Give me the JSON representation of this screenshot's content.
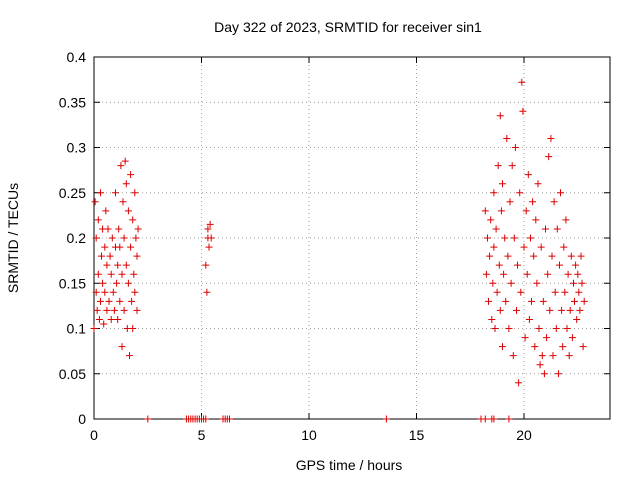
{
  "chart_data": {
    "type": "scatter",
    "title": "Day 322 of 2023, SRMTID for receiver sin1",
    "xlabel": "GPS time / hours",
    "ylabel": "SRMTID / TECUs",
    "xlim": [
      0,
      24
    ],
    "ylim": [
      0,
      0.4
    ],
    "grid": true,
    "marker": "+",
    "color": "#dd0000",
    "xticks": [
      0,
      5,
      10,
      15,
      20
    ],
    "xtick_labels": [
      "0",
      "5",
      "10",
      "15",
      "20"
    ],
    "yticks": [
      0,
      0.05,
      0.1,
      0.15,
      0.2,
      0.25,
      0.3,
      0.35,
      0.4
    ],
    "ytick_labels": [
      "0",
      "0.05",
      "0.1",
      "0.15",
      "0.2",
      "0.25",
      "0.3",
      "0.35",
      "0.4"
    ],
    "series": [
      {
        "points": [
          [
            0.0,
            0.1
          ],
          [
            0.05,
            0.24
          ],
          [
            0.1,
            0.14
          ],
          [
            0.1,
            0.2
          ],
          [
            0.15,
            0.12
          ],
          [
            0.2,
            0.22
          ],
          [
            0.2,
            0.16
          ],
          [
            0.25,
            0.11
          ],
          [
            0.3,
            0.25
          ],
          [
            0.3,
            0.13
          ],
          [
            0.35,
            0.18
          ],
          [
            0.4,
            0.21
          ],
          [
            0.4,
            0.15
          ],
          [
            0.45,
            0.105
          ],
          [
            0.5,
            0.19
          ],
          [
            0.5,
            0.14
          ],
          [
            0.55,
            0.23
          ],
          [
            0.6,
            0.12
          ],
          [
            0.6,
            0.17
          ],
          [
            0.65,
            0.21
          ],
          [
            0.7,
            0.13
          ],
          [
            0.75,
            0.18
          ],
          [
            0.8,
            0.11
          ],
          [
            0.8,
            0.16
          ],
          [
            0.85,
            0.2
          ],
          [
            0.9,
            0.14
          ],
          [
            0.95,
            0.12
          ],
          [
            1.0,
            0.19
          ],
          [
            1.0,
            0.25
          ],
          [
            1.05,
            0.15
          ],
          [
            1.1,
            0.11
          ],
          [
            1.1,
            0.17
          ],
          [
            1.15,
            0.21
          ],
          [
            1.2,
            0.13
          ],
          [
            1.2,
            0.19
          ],
          [
            1.25,
            0.28
          ],
          [
            1.3,
            0.08
          ],
          [
            1.3,
            0.16
          ],
          [
            1.35,
            0.24
          ],
          [
            1.4,
            0.12
          ],
          [
            1.4,
            0.2
          ],
          [
            1.45,
            0.285
          ],
          [
            1.5,
            0.17
          ],
          [
            1.5,
            0.26
          ],
          [
            1.55,
            0.1
          ],
          [
            1.6,
            0.15
          ],
          [
            1.6,
            0.23
          ],
          [
            1.65,
            0.07
          ],
          [
            1.7,
            0.27
          ],
          [
            1.7,
            0.19
          ],
          [
            1.75,
            0.13
          ],
          [
            1.8,
            0.22
          ],
          [
            1.8,
            0.1
          ],
          [
            1.85,
            0.16
          ],
          [
            1.9,
            0.25
          ],
          [
            1.9,
            0.14
          ],
          [
            1.95,
            0.2
          ],
          [
            2.0,
            0.12
          ],
          [
            2.0,
            0.18
          ],
          [
            2.05,
            0.21
          ],
          [
            5.2,
            0.17
          ],
          [
            5.25,
            0.14
          ],
          [
            5.3,
            0.2
          ],
          [
            5.3,
            0.21
          ],
          [
            5.35,
            0.19
          ],
          [
            5.4,
            0.215
          ],
          [
            5.45,
            0.2
          ],
          [
            18.2,
            0.23
          ],
          [
            18.25,
            0.16
          ],
          [
            18.3,
            0.2
          ],
          [
            18.35,
            0.13
          ],
          [
            18.4,
            0.18
          ],
          [
            18.45,
            0.22
          ],
          [
            18.5,
            0.11
          ],
          [
            18.55,
            0.15
          ],
          [
            18.6,
            0.25
          ],
          [
            18.6,
            0.19
          ],
          [
            18.65,
            0.1
          ],
          [
            18.7,
            0.21
          ],
          [
            18.75,
            0.14
          ],
          [
            18.8,
            0.28
          ],
          [
            18.85,
            0.17
          ],
          [
            18.9,
            0.335
          ],
          [
            18.9,
            0.12
          ],
          [
            18.95,
            0.23
          ],
          [
            19.0,
            0.08
          ],
          [
            19.0,
            0.26
          ],
          [
            19.05,
            0.16
          ],
          [
            19.1,
            0.2
          ],
          [
            19.15,
            0.13
          ],
          [
            19.2,
            0.31
          ],
          [
            19.25,
            0.18
          ],
          [
            19.3,
            0.1
          ],
          [
            19.35,
            0.24
          ],
          [
            19.4,
            0.15
          ],
          [
            19.45,
            0.28
          ],
          [
            19.5,
            0.07
          ],
          [
            19.55,
            0.2
          ],
          [
            19.6,
            0.3
          ],
          [
            19.65,
            0.12
          ],
          [
            19.7,
            0.17
          ],
          [
            19.75,
            0.04
          ],
          [
            19.8,
            0.25
          ],
          [
            19.85,
            0.14
          ],
          [
            19.9,
            0.372
          ],
          [
            19.95,
            0.34
          ],
          [
            20.0,
            0.19
          ],
          [
            20.05,
            0.09
          ],
          [
            20.1,
            0.23
          ],
          [
            20.15,
            0.16
          ],
          [
            20.2,
            0.27
          ],
          [
            20.25,
            0.11
          ],
          [
            20.3,
            0.2
          ],
          [
            20.35,
            0.13
          ],
          [
            20.4,
            0.24
          ],
          [
            20.45,
            0.18
          ],
          [
            20.5,
            0.08
          ],
          [
            20.55,
            0.22
          ],
          [
            20.6,
            0.15
          ],
          [
            20.65,
            0.26
          ],
          [
            20.7,
            0.1
          ],
          [
            20.75,
            0.06
          ],
          [
            20.8,
            0.19
          ],
          [
            20.85,
            0.07
          ],
          [
            20.9,
            0.13
          ],
          [
            20.95,
            0.05
          ],
          [
            21.0,
            0.21
          ],
          [
            21.05,
            0.09
          ],
          [
            21.1,
            0.16
          ],
          [
            21.15,
            0.29
          ],
          [
            21.2,
            0.12
          ],
          [
            21.25,
            0.31
          ],
          [
            21.3,
            0.18
          ],
          [
            21.35,
            0.07
          ],
          [
            21.4,
            0.24
          ],
          [
            21.45,
            0.14
          ],
          [
            21.5,
            0.1
          ],
          [
            21.55,
            0.21
          ],
          [
            21.6,
            0.05
          ],
          [
            21.65,
            0.17
          ],
          [
            21.7,
            0.25
          ],
          [
            21.75,
            0.12
          ],
          [
            21.8,
            0.08
          ],
          [
            21.85,
            0.19
          ],
          [
            21.9,
            0.14
          ],
          [
            21.95,
            0.22
          ],
          [
            22.0,
            0.1
          ],
          [
            22.05,
            0.16
          ],
          [
            22.1,
            0.07
          ],
          [
            22.15,
            0.12
          ],
          [
            22.2,
            0.18
          ],
          [
            22.25,
            0.09
          ],
          [
            22.3,
            0.15
          ],
          [
            22.35,
            0.13
          ],
          [
            22.4,
            0.17
          ],
          [
            22.45,
            0.11
          ],
          [
            22.5,
            0.16
          ],
          [
            22.55,
            0.14
          ],
          [
            22.6,
            0.12
          ],
          [
            22.65,
            0.18
          ],
          [
            22.7,
            0.15
          ],
          [
            22.75,
            0.08
          ],
          [
            22.8,
            0.13
          ],
          [
            2.5,
            0
          ],
          [
            4.3,
            0
          ],
          [
            4.4,
            0
          ],
          [
            4.5,
            0
          ],
          [
            4.6,
            0
          ],
          [
            4.7,
            0
          ],
          [
            4.8,
            0
          ],
          [
            4.9,
            0
          ],
          [
            5.0,
            0
          ],
          [
            5.1,
            0
          ],
          [
            5.2,
            0
          ],
          [
            6.0,
            0
          ],
          [
            6.1,
            0
          ],
          [
            6.2,
            0
          ],
          [
            6.3,
            0
          ],
          [
            13.6,
            0
          ],
          [
            18.0,
            0
          ],
          [
            18.2,
            0
          ],
          [
            18.5,
            0
          ],
          [
            18.6,
            0
          ],
          [
            19.3,
            0
          ]
        ]
      }
    ]
  }
}
